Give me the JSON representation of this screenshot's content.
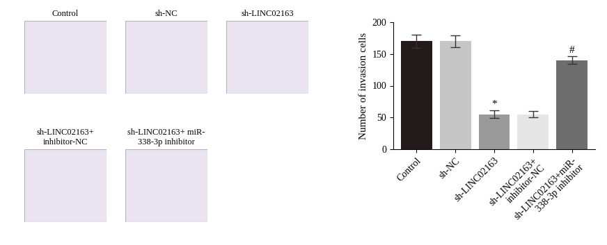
{
  "images": [
    "Control",
    "sh-NC",
    "sh-LINC02163",
    "sh-LINC02163+\ninhibitor-NC",
    "sh-LINC02163+ miR-\n338-3p inhibitor"
  ],
  "chart_data": {
    "type": "bar",
    "y_label": "Number of invasion cells",
    "categories": [
      "Control",
      "sh-NC",
      "sh-LINC02163",
      "sh-LINC02163+\ninhibitor-NC",
      "sh-LINC02163+miR-\n338-3p inhibitor"
    ],
    "values": [
      170,
      170,
      55,
      55,
      140
    ],
    "errors": [
      10,
      9,
      6,
      5,
      6
    ],
    "colors": [
      "#231a1a",
      "#c6c6c6",
      "#9a9a9a",
      "#e6e6e6",
      "#6e6e6e"
    ],
    "ylim": [
      0,
      200
    ],
    "yticks": [
      0,
      50,
      100,
      150,
      200
    ],
    "annotations": [
      {
        "text": "*",
        "category": "sh-LINC02163"
      },
      {
        "text": "#",
        "category": "sh-LINC02163+miR-\n338-3p inhibitor"
      }
    ]
  }
}
